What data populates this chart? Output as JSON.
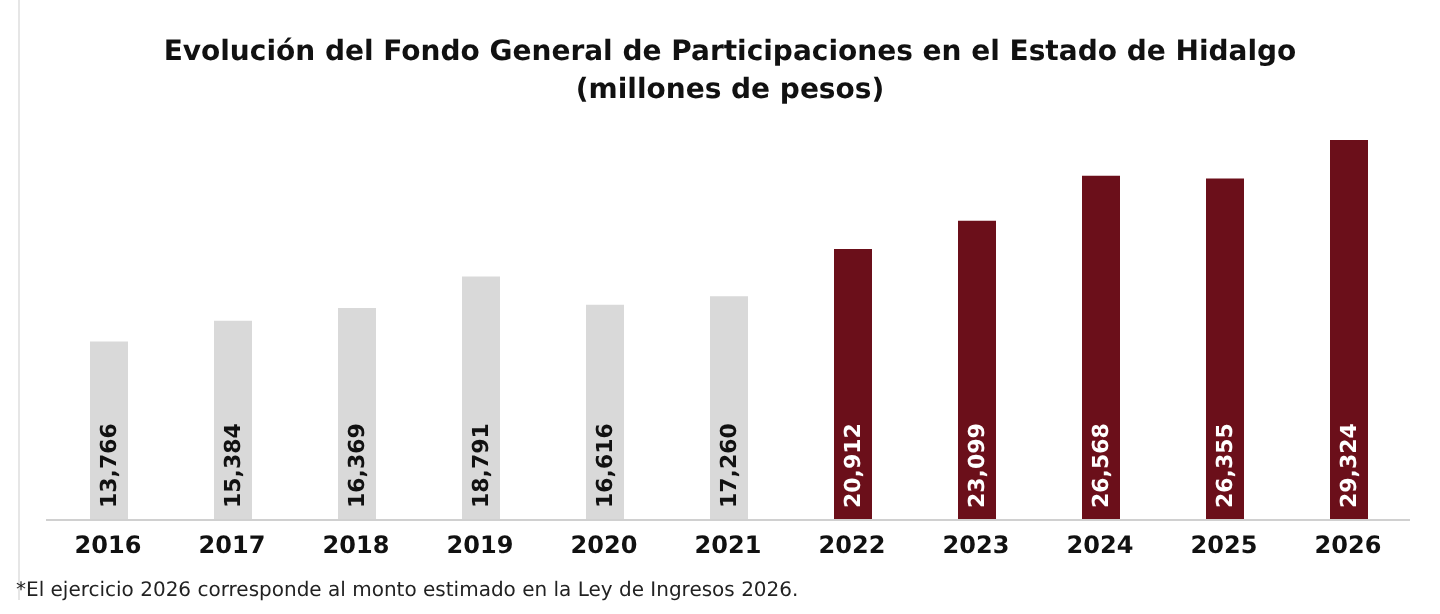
{
  "chart_data": {
    "type": "bar",
    "title": "Evolución del Fondo General de Participaciones en el Estado de Hidalgo\n(millones de pesos)",
    "categories": [
      "2016",
      "2017",
      "2018",
      "2019",
      "2020",
      "2021",
      "2022",
      "2023",
      "2024",
      "2025",
      "2026"
    ],
    "values": [
      13766,
      15384,
      16369,
      18791,
      16616,
      17260,
      20912,
      23099,
      26568,
      26355,
      29324
    ],
    "colors": [
      "#d9d9d9",
      "#d9d9d9",
      "#d9d9d9",
      "#d9d9d9",
      "#d9d9d9",
      "#d9d9d9",
      "#6b0f1a",
      "#6b0f1a",
      "#6b0f1a",
      "#6b0f1a",
      "#6b0f1a"
    ],
    "value_labels": [
      "13,766",
      "15,384",
      "16,369",
      "18,791",
      "16,616",
      "17,260",
      "20,912",
      "23,099",
      "26,568",
      "26,355",
      "29,324"
    ],
    "annotations": [
      "*El ejercicio 2026 corresponde al monto estimado en la Ley de Ingresos 2026."
    ],
    "grid": false,
    "legend": false
  }
}
